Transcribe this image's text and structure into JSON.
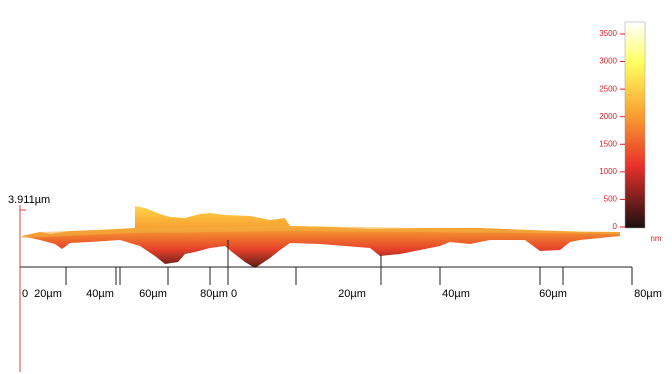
{
  "height_label": "3.911µm",
  "axis_1": {
    "labels": [
      "0",
      "20µm",
      "40µm",
      "60µm",
      "80µm"
    ]
  },
  "axis_2": {
    "labels": [
      "0",
      "20µm",
      "40µm",
      "60µm",
      "80µm"
    ]
  },
  "colorbar": {
    "ticks": [
      3500,
      3000,
      2500,
      2000,
      1500,
      1000,
      500,
      0
    ],
    "unit": "nm"
  }
}
